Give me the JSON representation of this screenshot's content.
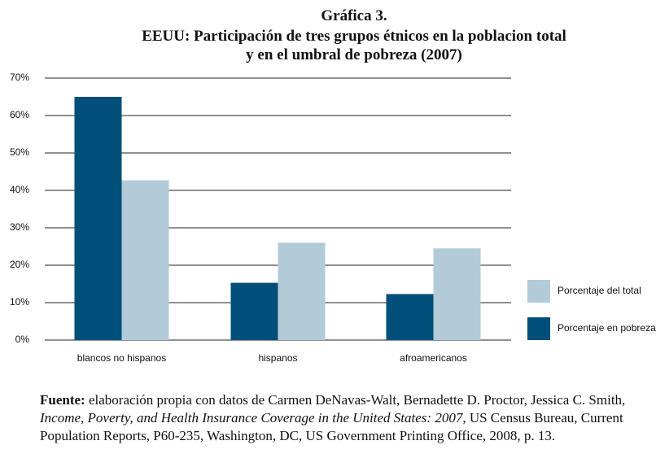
{
  "chart_data": {
    "type": "bar",
    "title": "Gráfica 3.",
    "subtitle": "EEUU: Participación de tres grupos étnicos en la poblacion total y en el umbral de pobreza (2007)",
    "categories": [
      "blancos no hispanos",
      "hispanos",
      "afroamericanos"
    ],
    "series": [
      {
        "name": "Porcentaje en pobreza",
        "color": "#004f7a",
        "values": [
          65,
          15.3,
          12.3
        ]
      },
      {
        "name": "Porcentaje del total",
        "color": "#b3cbd8",
        "values": [
          42.7,
          26,
          24.5
        ]
      }
    ],
    "ylim": [
      0,
      70
    ],
    "yticks": [
      {
        "value": 0,
        "label": "0%"
      },
      {
        "value": 10,
        "label": "10%"
      },
      {
        "value": 20,
        "label": "20%"
      },
      {
        "value": 30,
        "label": "30%"
      },
      {
        "value": 40,
        "label": "40%"
      },
      {
        "value": 50,
        "label": "50%"
      },
      {
        "value": 60,
        "label": "60%"
      },
      {
        "value": 70,
        "label": "70%"
      }
    ],
    "grid": true,
    "legend": "right",
    "source": {
      "label": "Fuente:",
      "text": "elaboración propia con datos de Carmen DeNavas-Walt, Bernadette D. Proctor, Jessica C. Smith,",
      "italic": "Income, Poverty, and Health Insurance Coverage in the United States: 2007",
      "rest": ", US Census Bureau, Current Population Reports, P60-235, Washington, DC, US Government Printing Office, 2008, p. 13."
    }
  }
}
